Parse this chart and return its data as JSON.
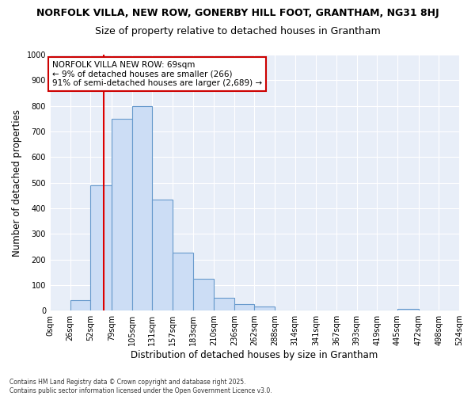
{
  "title1": "NORFOLK VILLA, NEW ROW, GONERBY HILL FOOT, GRANTHAM, NG31 8HJ",
  "title2": "Size of property relative to detached houses in Grantham",
  "xlabel": "Distribution of detached houses by size in Grantham",
  "ylabel": "Number of detached properties",
  "bin_edges": [
    0,
    26,
    52,
    79,
    105,
    131,
    157,
    183,
    210,
    236,
    262,
    288,
    314,
    341,
    367,
    393,
    419,
    445,
    472,
    498,
    524
  ],
  "bar_heights": [
    0,
    40,
    490,
    750,
    800,
    435,
    225,
    125,
    50,
    25,
    15,
    0,
    0,
    0,
    0,
    0,
    0,
    8,
    0,
    0
  ],
  "bar_color": "#ccddf5",
  "bar_edge_color": "#6699cc",
  "vline_x": 69,
  "vline_color": "#dd0000",
  "annotation_text": "NORFOLK VILLA NEW ROW: 69sqm\n← 9% of detached houses are smaller (266)\n91% of semi-detached houses are larger (2,689) →",
  "annotation_box_facecolor": "#ffffff",
  "annotation_box_edgecolor": "#cc0000",
  "ylim": [
    0,
    1000
  ],
  "tick_labels": [
    "0sqm",
    "26sqm",
    "52sqm",
    "79sqm",
    "105sqm",
    "131sqm",
    "157sqm",
    "183sqm",
    "210sqm",
    "236sqm",
    "262sqm",
    "288sqm",
    "314sqm",
    "341sqm",
    "367sqm",
    "393sqm",
    "419sqm",
    "445sqm",
    "472sqm",
    "498sqm",
    "524sqm"
  ],
  "footer_text": "Contains HM Land Registry data © Crown copyright and database right 2025.\nContains public sector information licensed under the Open Government Licence v3.0.",
  "fig_facecolor": "#ffffff",
  "ax_facecolor": "#e8eef8",
  "grid_color": "#ffffff",
  "title1_fontsize": 9,
  "title2_fontsize": 9,
  "axis_label_fontsize": 8.5,
  "tick_fontsize": 7,
  "annotation_fontsize": 7.5,
  "footer_fontsize": 5.5,
  "yticks": [
    0,
    100,
    200,
    300,
    400,
    500,
    600,
    700,
    800,
    900,
    1000
  ]
}
